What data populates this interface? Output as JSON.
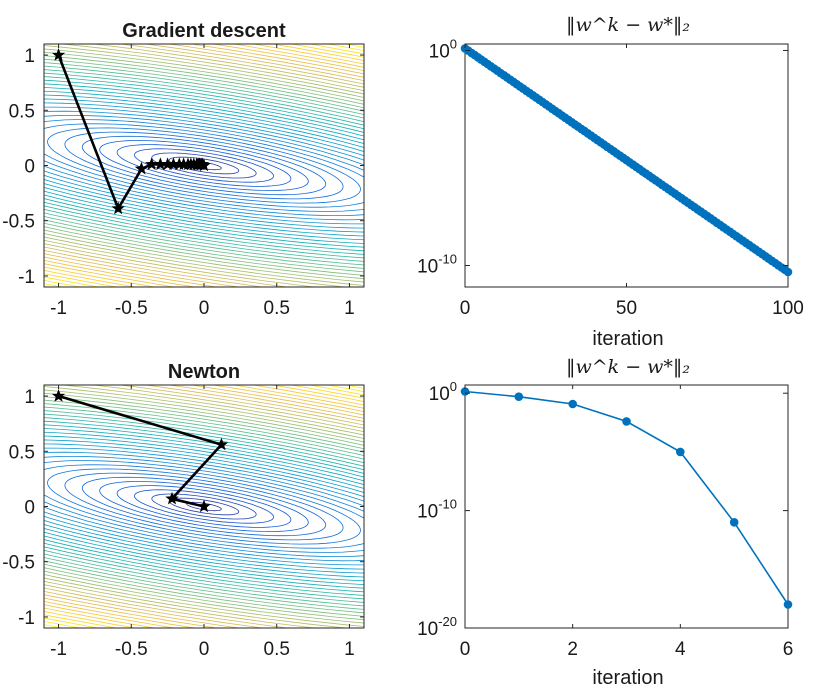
{
  "chart_data": [
    {
      "type": "contour",
      "title": "Gradient descent",
      "xlim": [
        -1.1,
        1.1
      ],
      "ylim": [
        -1.1,
        1.1
      ],
      "xticks": [
        -1,
        -0.5,
        0,
        0.5,
        1
      ],
      "xtick_labels": [
        "-1",
        "-0.5",
        "0",
        "0.5",
        "1"
      ],
      "yticks": [
        1,
        0.5,
        0,
        -0.5,
        -1
      ],
      "ytick_labels": [
        "1",
        "0.5",
        "0",
        "-0.5",
        "-1"
      ],
      "colormap": "parula",
      "path": {
        "x": [
          -1,
          -0.59,
          -0.43,
          -0.36,
          -0.3,
          -0.25,
          -0.21,
          -0.17,
          -0.14,
          -0.11,
          -0.09,
          -0.07,
          -0.05,
          -0.04,
          -0.03,
          -0.02,
          -0.01,
          0
        ],
        "y": [
          1,
          -0.39,
          -0.03,
          0.01,
          0.01,
          0.01,
          0.01,
          0.01,
          0.01,
          0.01,
          0.01,
          0.01,
          0.01,
          0.01,
          0.01,
          0.01,
          0.01,
          0
        ],
        "color": "#000000",
        "marker": "star"
      }
    },
    {
      "type": "line",
      "title": "‖w^k − w*‖₂",
      "xlabel": "",
      "yscale": "log",
      "xlim": [
        0,
        100
      ],
      "ylim": [
        1e-11,
        2
      ],
      "xticks": [
        0,
        50,
        100
      ],
      "xtick_labels": [
        "0",
        "50",
        "100"
      ],
      "yticks": [
        1,
        1e-10
      ],
      "ytick_base": [
        "10",
        "10"
      ],
      "ytick_exp": [
        "0",
        "-10"
      ],
      "series": [
        {
          "x_start": 0,
          "x_end": 100,
          "y_start": 1.25,
          "y_end": 5e-11,
          "count": 101,
          "color": "#0072BD"
        }
      ]
    },
    {
      "type": "contour",
      "title": "Newton",
      "xlim": [
        -1.1,
        1.1
      ],
      "ylim": [
        -1.1,
        1.1
      ],
      "xticks": [
        -1,
        -0.5,
        0,
        0.5,
        1
      ],
      "xtick_labels": [
        "-1",
        "-0.5",
        "0",
        "0.5",
        "1"
      ],
      "yticks": [
        1,
        0.5,
        0,
        -0.5,
        -1
      ],
      "ytick_labels": [
        "1",
        "0.5",
        "0",
        "-0.5",
        "-1"
      ],
      "colormap": "parula",
      "path": {
        "x": [
          -1,
          0.12,
          -0.22,
          0
        ],
        "y": [
          1,
          0.56,
          0.07,
          0
        ],
        "color": "#000000",
        "marker": "star"
      }
    },
    {
      "type": "line",
      "title": "‖w^k − w*‖₂",
      "xlabel": "iteration",
      "yscale": "log",
      "xlim": [
        0,
        6
      ],
      "ylim": [
        1e-20,
        5
      ],
      "xticks": [
        0,
        2,
        4,
        6
      ],
      "xtick_labels": [
        "0",
        "2",
        "4",
        "6"
      ],
      "yticks": [
        1,
        1e-10,
        1e-20
      ],
      "ytick_base": [
        "10",
        "10",
        "10"
      ],
      "ytick_exp": [
        "0",
        "-10",
        "-20"
      ],
      "series": [
        {
          "x": [
            0,
            1,
            2,
            3,
            4,
            5,
            6
          ],
          "y": [
            1.4,
            0.5,
            0.12,
            0.004,
            1e-05,
            1e-11,
            1e-18
          ],
          "color": "#0072BD"
        }
      ]
    }
  ],
  "top_right_xlabel": "iteration",
  "colors": {
    "contour_low": "#352A87",
    "contour_high": "#F9FB0E",
    "series": "#0072BD"
  }
}
